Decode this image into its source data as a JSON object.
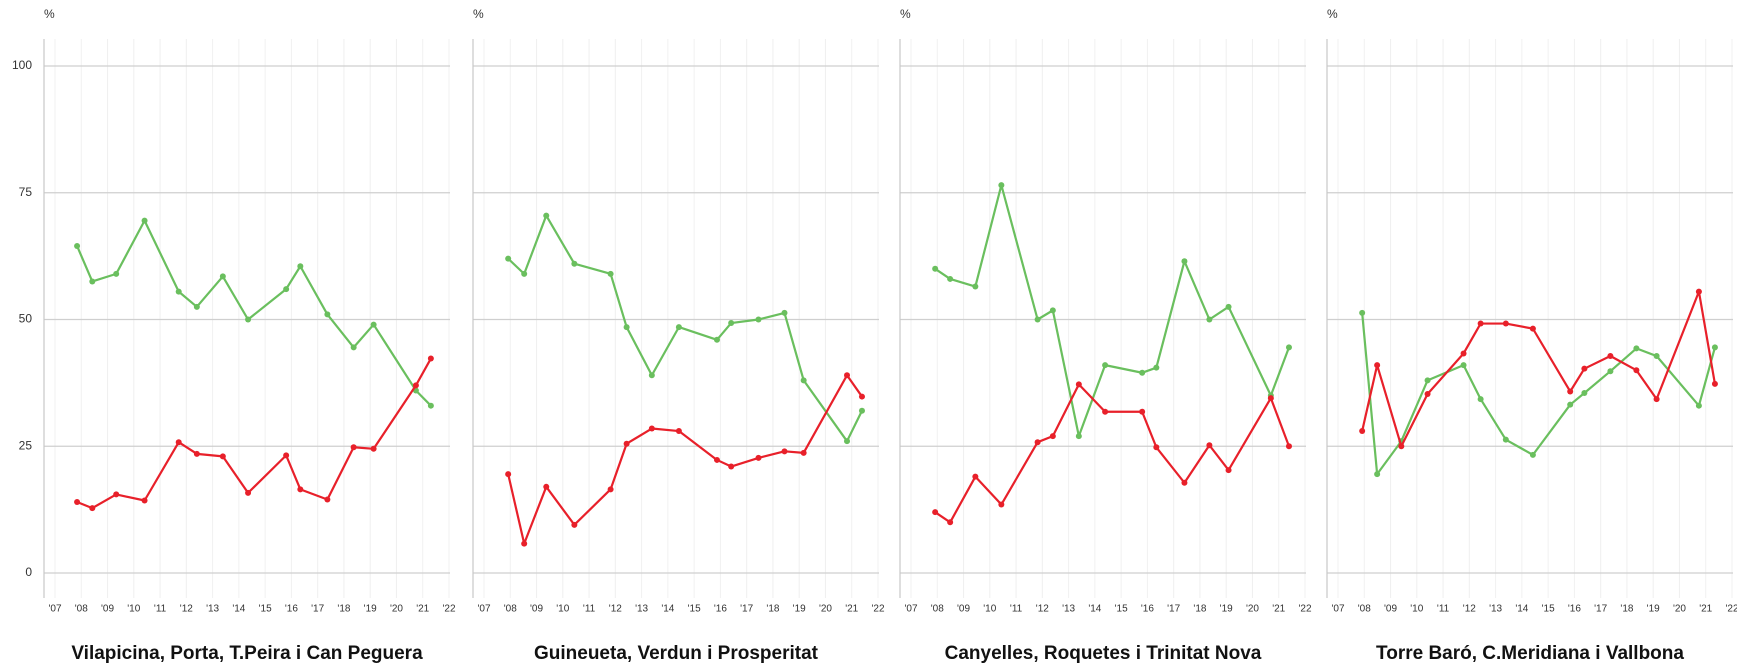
{
  "chart_data": [
    {
      "type": "line",
      "title": "Vilapicina, Porta, T.Peira i Can Peguera",
      "ylabel": "%",
      "x": [
        2007.84,
        2008.42,
        2009.33,
        2010.41,
        2011.71,
        2012.4,
        2013.39,
        2014.35,
        2015.8,
        2016.34,
        2017.37,
        2018.37,
        2019.13,
        2020.74,
        2021.31
      ],
      "series": [
        {
          "color": "#6abf5e",
          "values": [
            64.5,
            57.5,
            59,
            69.5,
            55.5,
            52.5,
            58.5,
            50,
            56,
            60.5,
            51,
            44.5,
            49,
            36,
            33
          ]
        },
        {
          "color": "#e8202a",
          "values": [
            14,
            12.8,
            15.5,
            14.3,
            25.8,
            23.5,
            23,
            15.8,
            23.2,
            16.5,
            14.5,
            24.8,
            24.5,
            37,
            42.3
          ]
        }
      ],
      "xlim": [
        2007,
        2022
      ],
      "xticks": [
        {
          "value": 2007,
          "label": "'07"
        },
        {
          "value": 2008,
          "label": "'08"
        },
        {
          "value": 2009,
          "label": "'09"
        },
        {
          "value": 2010,
          "label": "'10"
        },
        {
          "value": 2011,
          "label": "'11"
        },
        {
          "value": 2012,
          "label": "'12"
        },
        {
          "value": 2013,
          "label": "'13"
        },
        {
          "value": 2014,
          "label": "'14"
        },
        {
          "value": 2015,
          "label": "'15"
        },
        {
          "value": 2016,
          "label": "'16"
        },
        {
          "value": 2017,
          "label": "'17"
        },
        {
          "value": 2018,
          "label": "'18"
        },
        {
          "value": 2019,
          "label": "'19"
        },
        {
          "value": 2020,
          "label": "'20"
        },
        {
          "value": 2021,
          "label": "'21"
        },
        {
          "value": 2022,
          "label": "'22"
        }
      ],
      "ylim": [
        0,
        100
      ],
      "yticks": [
        0,
        25,
        50,
        75,
        100
      ],
      "ytick_labels": true,
      "grid": true
    },
    {
      "type": "line",
      "title": "Guineueta, Verdun i Prosperitat",
      "ylabel": "%",
      "x": [
        2007.92,
        2008.53,
        2009.37,
        2010.44,
        2011.82,
        2012.43,
        2013.39,
        2014.42,
        2015.87,
        2016.41,
        2017.45,
        2018.44,
        2019.17,
        2020.82,
        2021.39
      ],
      "series": [
        {
          "color": "#6abf5e",
          "values": [
            62,
            59,
            70.5,
            61,
            59,
            48.5,
            39,
            48.5,
            46,
            49.3,
            50,
            51.3,
            38,
            26,
            32
          ]
        },
        {
          "color": "#e8202a",
          "values": [
            19.5,
            5.8,
            17,
            9.5,
            16.5,
            25.5,
            28.5,
            28,
            22.3,
            21,
            22.7,
            24,
            23.7,
            39,
            34.8
          ]
        }
      ],
      "xlim": [
        2007,
        2022
      ],
      "xticks": [
        {
          "value": 2007,
          "label": "'07"
        },
        {
          "value": 2008,
          "label": "'08"
        },
        {
          "value": 2009,
          "label": "'09"
        },
        {
          "value": 2010,
          "label": "'10"
        },
        {
          "value": 2011,
          "label": "'11"
        },
        {
          "value": 2012,
          "label": "'12"
        },
        {
          "value": 2013,
          "label": "'13"
        },
        {
          "value": 2014,
          "label": "'14"
        },
        {
          "value": 2015,
          "label": "'15"
        },
        {
          "value": 2016,
          "label": "'16"
        },
        {
          "value": 2017,
          "label": "'17"
        },
        {
          "value": 2018,
          "label": "'18"
        },
        {
          "value": 2019,
          "label": "'19"
        },
        {
          "value": 2020,
          "label": "'20"
        },
        {
          "value": 2021,
          "label": "'21"
        },
        {
          "value": 2022,
          "label": "'22"
        }
      ],
      "ylim": [
        0,
        100
      ],
      "yticks": [
        0,
        25,
        50,
        75,
        100
      ],
      "ytick_labels": false,
      "grid": true
    },
    {
      "type": "line",
      "title": "Canyelles, Roquetes i Trinitat Nova",
      "ylabel": "%",
      "x": [
        2007.92,
        2008.49,
        2009.45,
        2010.44,
        2011.82,
        2012.4,
        2013.39,
        2014.39,
        2015.8,
        2016.34,
        2017.41,
        2018.36,
        2019.09,
        2020.7,
        2021.39
      ],
      "series": [
        {
          "color": "#6abf5e",
          "values": [
            60,
            58,
            56.5,
            76.5,
            50,
            51.8,
            27,
            41,
            39.5,
            40.5,
            61.5,
            50,
            52.5,
            35,
            44.5
          ]
        },
        {
          "color": "#e8202a",
          "values": [
            12,
            10,
            19,
            13.5,
            25.8,
            27,
            37.2,
            31.8,
            31.8,
            24.8,
            17.8,
            25.2,
            20.3,
            34.5,
            25
          ]
        }
      ],
      "xlim": [
        2007,
        2022
      ],
      "xticks": [
        {
          "value": 2007,
          "label": "'07"
        },
        {
          "value": 2008,
          "label": "'08"
        },
        {
          "value": 2009,
          "label": "'09"
        },
        {
          "value": 2010,
          "label": "'10"
        },
        {
          "value": 2011,
          "label": "'11"
        },
        {
          "value": 2012,
          "label": "'12"
        },
        {
          "value": 2013,
          "label": "'13"
        },
        {
          "value": 2014,
          "label": "'14"
        },
        {
          "value": 2015,
          "label": "'15"
        },
        {
          "value": 2016,
          "label": "'16"
        },
        {
          "value": 2017,
          "label": "'17"
        },
        {
          "value": 2018,
          "label": "'18"
        },
        {
          "value": 2019,
          "label": "'19"
        },
        {
          "value": 2020,
          "label": "'20"
        },
        {
          "value": 2021,
          "label": "'21"
        },
        {
          "value": 2022,
          "label": "'22"
        }
      ],
      "ylim": [
        0,
        100
      ],
      "yticks": [
        0,
        25,
        50,
        75,
        100
      ],
      "ytick_labels": false,
      "grid": true
    },
    {
      "type": "line",
      "title": "Torre Baró, C.Meridiana i Vallbona",
      "ylabel": "%",
      "x": [
        2007.92,
        2008.49,
        2009.41,
        2010.41,
        2011.78,
        2012.43,
        2013.39,
        2014.42,
        2015.84,
        2016.38,
        2017.37,
        2018.36,
        2019.13,
        2020.74,
        2021.35
      ],
      "series": [
        {
          "color": "#6abf5e",
          "values": [
            51.3,
            19.5,
            26,
            38,
            41,
            34.3,
            26.3,
            23.3,
            33.2,
            35.5,
            39.8,
            44.3,
            42.8,
            33,
            44.5
          ]
        },
        {
          "color": "#e8202a",
          "values": [
            28,
            41,
            25,
            35.3,
            43.3,
            49.2,
            49.2,
            48.2,
            35.8,
            40.3,
            42.8,
            40,
            34.3,
            55.5,
            37.3
          ]
        }
      ],
      "xlim": [
        2007,
        2022
      ],
      "xticks": [
        {
          "value": 2007,
          "label": "'07"
        },
        {
          "value": 2008,
          "label": "'08"
        },
        {
          "value": 2009,
          "label": "'09"
        },
        {
          "value": 2010,
          "label": "'10"
        },
        {
          "value": 2011,
          "label": "'11"
        },
        {
          "value": 2012,
          "label": "'12"
        },
        {
          "value": 2013,
          "label": "'13"
        },
        {
          "value": 2014,
          "label": "'14"
        },
        {
          "value": 2015,
          "label": "'15"
        },
        {
          "value": 2016,
          "label": "'16"
        },
        {
          "value": 2017,
          "label": "'17"
        },
        {
          "value": 2018,
          "label": "'18"
        },
        {
          "value": 2019,
          "label": "'19"
        },
        {
          "value": 2020,
          "label": "'20"
        },
        {
          "value": 2021,
          "label": "'21"
        },
        {
          "value": 2022,
          "label": "'22"
        }
      ],
      "ylim": [
        0,
        100
      ],
      "yticks": [
        0,
        25,
        50,
        75,
        100
      ],
      "ytick_labels": false,
      "grid": true
    }
  ]
}
